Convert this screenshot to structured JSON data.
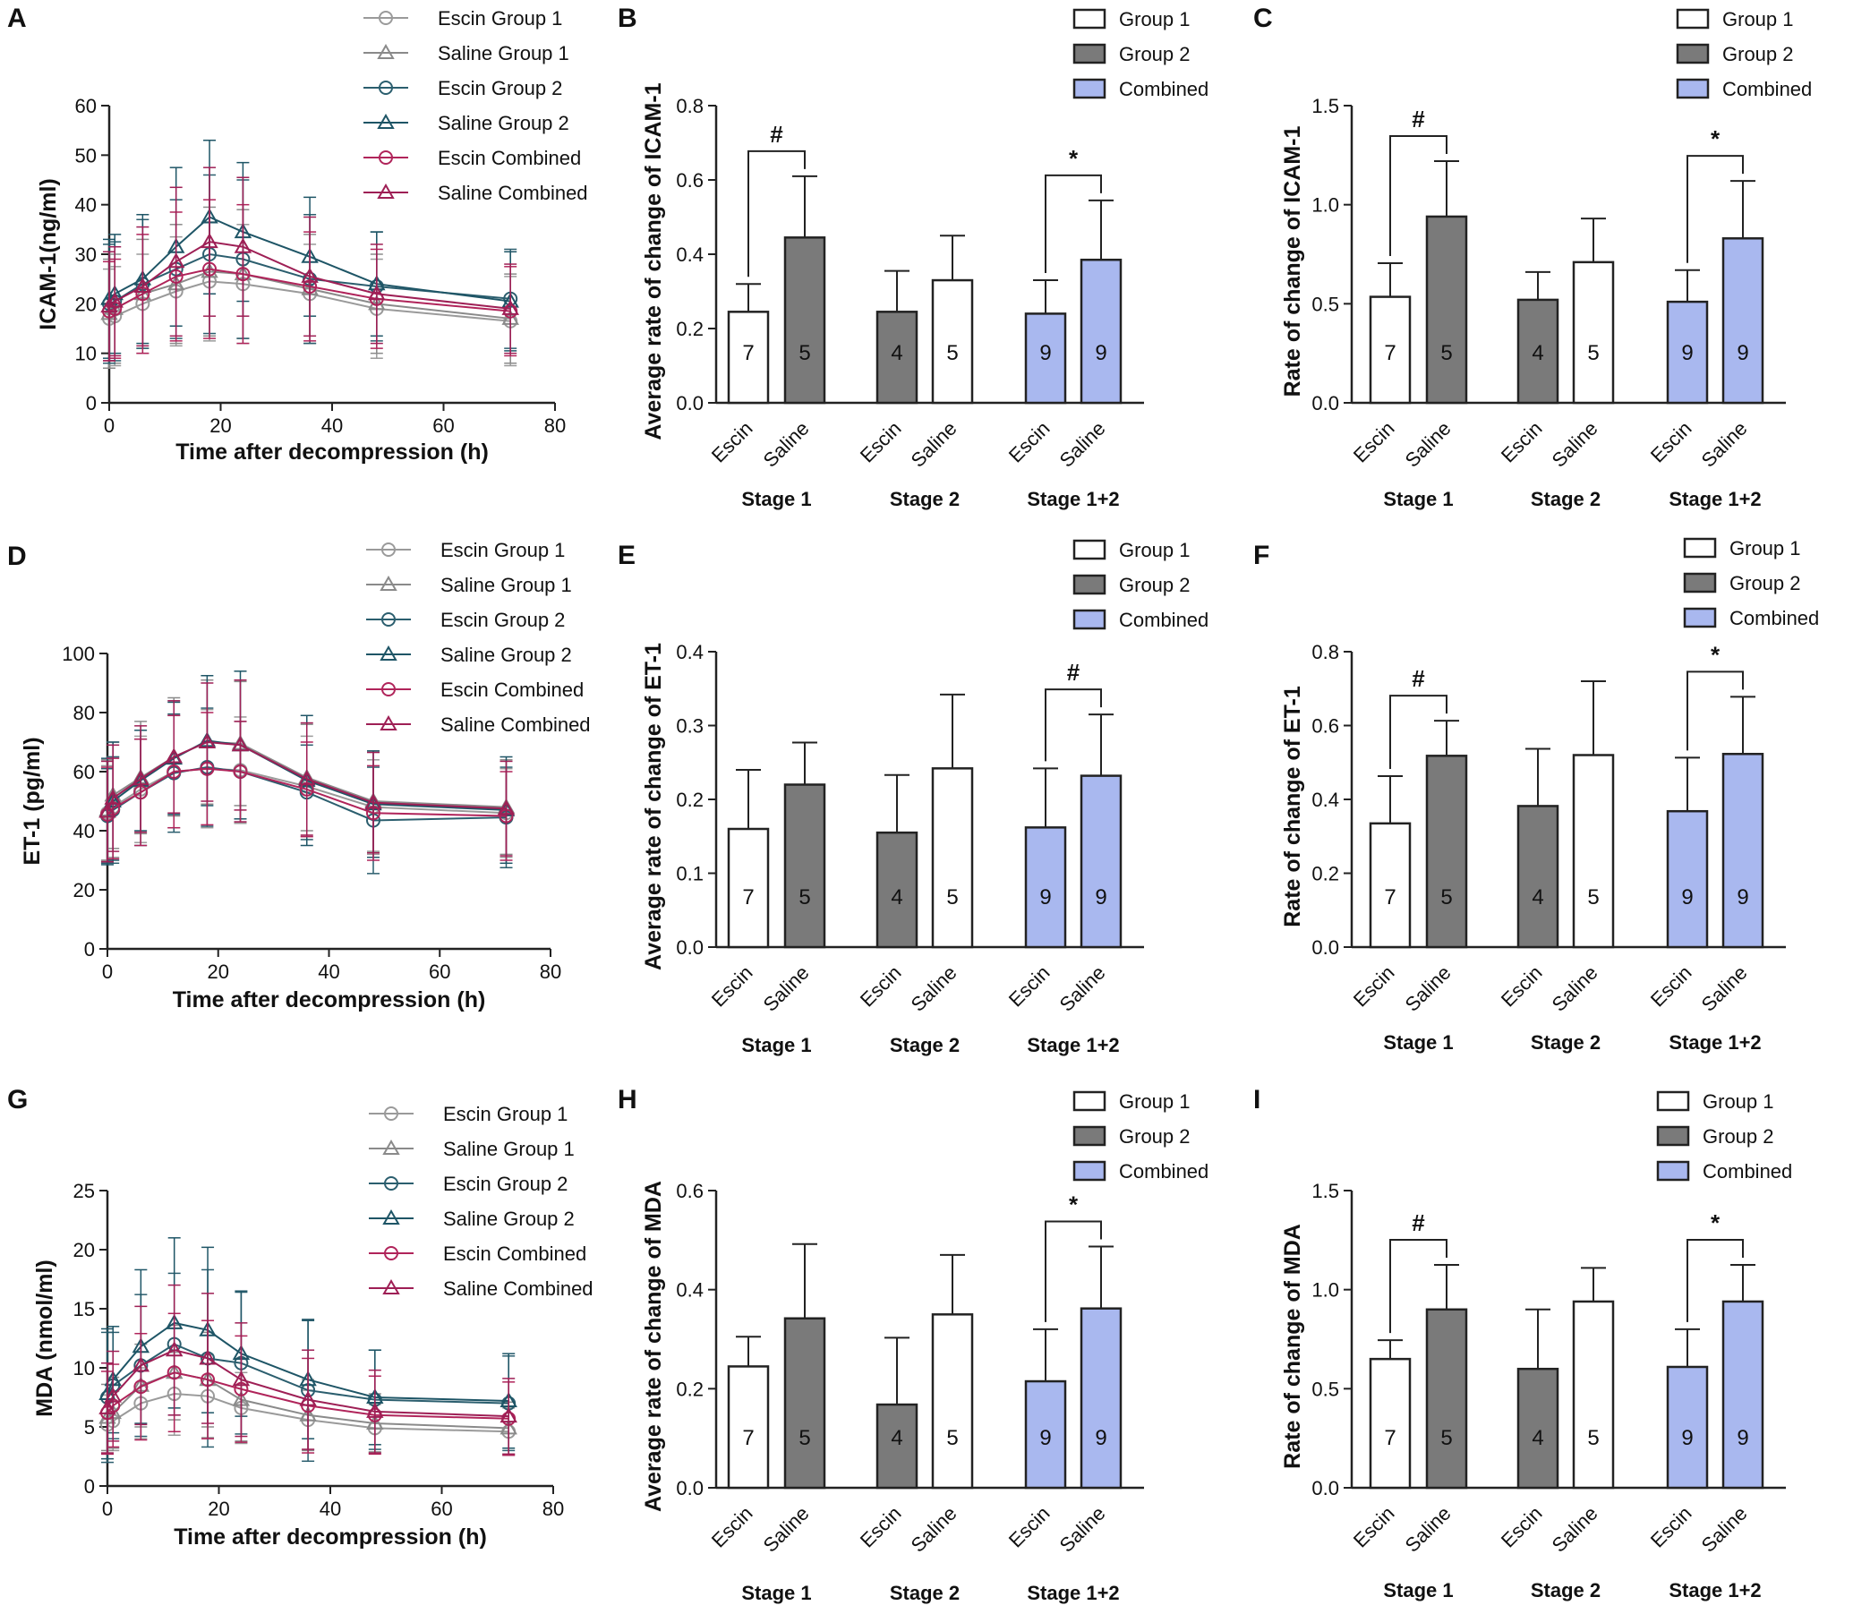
{
  "colors": {
    "group1": "#ffffff",
    "group2": "#7a7a7a",
    "combined": "#a9b8ef",
    "escin_g1": "#9a9a9a",
    "saline_g1": "#8a8a8a",
    "escin_g2": "#2b5e6e",
    "saline_g2": "#1e5566",
    "escin_comb": "#b0245a",
    "saline_comb": "#9e1f55",
    "axis": "#222222"
  },
  "chart_data": [
    {
      "panel": "A",
      "type": "line",
      "xlabel": "Time after decompression (h)",
      "ylabel": "ICAM-1(ng/ml)",
      "xlim": [
        0,
        80
      ],
      "ylim": [
        0,
        60
      ],
      "xticks": [
        "0",
        "20",
        "40",
        "60",
        "80"
      ],
      "yticks": [
        "0",
        "10",
        "20",
        "30",
        "40",
        "50",
        "60"
      ],
      "x": [
        0,
        1,
        6,
        12,
        18,
        24,
        36,
        48,
        72
      ],
      "series": [
        {
          "name": "Escin Group 1",
          "marker": "circle",
          "color_key": "escin_g1",
          "values": [
            17,
            17.5,
            20,
            22.5,
            24.5,
            24,
            22,
            19,
            16.5
          ],
          "err": [
            10,
            10,
            10,
            11,
            12,
            12,
            10,
            10,
            9
          ]
        },
        {
          "name": "Saline Group 1",
          "marker": "triangle",
          "color_key": "saline_g1",
          "values": [
            18,
            19,
            22,
            24,
            26.5,
            26,
            23,
            20,
            17
          ],
          "err": [
            11,
            11,
            11,
            12,
            13,
            13,
            11,
            10,
            9
          ]
        },
        {
          "name": "Escin Group 2",
          "marker": "circle",
          "color_key": "escin_g2",
          "values": [
            20,
            20.5,
            24,
            27,
            30,
            29,
            25,
            23.5,
            21
          ],
          "err": [
            12,
            12,
            13,
            14,
            16,
            16,
            13,
            11,
            10
          ]
        },
        {
          "name": "Saline Group 2",
          "marker": "triangle",
          "color_key": "saline_g2",
          "values": [
            21,
            22,
            25,
            31.5,
            37.5,
            34.5,
            29.5,
            24,
            20.5
          ],
          "err": [
            12,
            12,
            13,
            16,
            15.5,
            14,
            12,
            10.5,
            10
          ]
        },
        {
          "name": "Escin Combined",
          "marker": "circle",
          "color_key": "escin_comb",
          "values": [
            18.5,
            19,
            22,
            25.5,
            27,
            26,
            23.5,
            21,
            18.5
          ],
          "err": [
            10,
            10,
            12,
            13,
            14,
            14,
            11,
            10,
            9
          ]
        },
        {
          "name": "Saline Combined",
          "marker": "triangle",
          "color_key": "saline_comb",
          "values": [
            19.5,
            20.5,
            23.5,
            28.5,
            32.5,
            31.5,
            25.5,
            22,
            19
          ],
          "err": [
            11,
            11,
            12,
            15,
            15,
            14,
            12,
            10,
            9
          ]
        }
      ]
    },
    {
      "panel": "B",
      "type": "bar",
      "ylabel": "Average rate of change of ICAM-1",
      "ylim": [
        0,
        0.8
      ],
      "yticks": [
        "0.0",
        "0.2",
        "0.4",
        "0.6",
        "0.8"
      ],
      "legend": [
        "Group 1",
        "Group 2",
        "Combined"
      ],
      "stages": [
        "Stage 1",
        "Stage 2",
        "Stage 1+2"
      ],
      "bar_labels": [
        "Escin",
        "Saline",
        "Escin",
        "Saline",
        "Escin",
        "Saline"
      ],
      "bar_colors": [
        "group1",
        "group2",
        "group2",
        "group1",
        "combined",
        "combined"
      ],
      "values": [
        0.245,
        0.445,
        0.245,
        0.33,
        0.24,
        0.385
      ],
      "err": [
        0.075,
        0.165,
        0.11,
        0.12,
        0.09,
        0.16
      ],
      "n": [
        "7",
        "5",
        "4",
        "5",
        "9",
        "9"
      ],
      "significance": [
        {
          "stage": 0,
          "symbol": "#"
        },
        {
          "stage": 2,
          "symbol": "*"
        }
      ]
    },
    {
      "panel": "C",
      "type": "bar",
      "ylabel": "Rate of change of ICAM-1",
      "ylim": [
        0,
        1.5
      ],
      "yticks": [
        "0.0",
        "0.5",
        "1.0",
        "1.5"
      ],
      "legend": [
        "Group 1",
        "Group 2",
        "Combined"
      ],
      "stages": [
        "Stage 1",
        "Stage 2",
        "Stage 1+2"
      ],
      "bar_labels": [
        "Escin",
        "Saline",
        "Escin",
        "Saline",
        "Escin",
        "Saline"
      ],
      "bar_colors": [
        "group1",
        "group2",
        "group2",
        "group1",
        "combined",
        "combined"
      ],
      "values": [
        0.535,
        0.94,
        0.52,
        0.71,
        0.51,
        0.83
      ],
      "err": [
        0.17,
        0.28,
        0.14,
        0.22,
        0.16,
        0.29
      ],
      "n": [
        "7",
        "5",
        "4",
        "5",
        "9",
        "9"
      ],
      "significance": [
        {
          "stage": 0,
          "symbol": "#"
        },
        {
          "stage": 2,
          "symbol": "*"
        }
      ]
    },
    {
      "panel": "D",
      "type": "line",
      "xlabel": "Time after decompression (h)",
      "ylabel": "ET-1 (pg/ml)",
      "xlim": [
        0,
        80
      ],
      "ylim": [
        0,
        100
      ],
      "xticks": [
        "0",
        "20",
        "40",
        "60",
        "80"
      ],
      "yticks": [
        "0",
        "20",
        "40",
        "60",
        "80",
        "100"
      ],
      "x": [
        0,
        1,
        6,
        12,
        18,
        24,
        36,
        48,
        72
      ],
      "series": [
        {
          "name": "Escin Group 1",
          "marker": "circle",
          "color_key": "escin_g1",
          "values": [
            46,
            48,
            54,
            60,
            61,
            60.5,
            55,
            48,
            46
          ],
          "err": [
            16,
            17,
            18,
            19,
            20,
            18,
            17,
            16,
            15
          ]
        },
        {
          "name": "Saline Group 1",
          "marker": "triangle",
          "color_key": "saline_g1",
          "values": [
            47,
            52,
            58,
            65,
            70,
            69.5,
            58,
            50,
            48
          ],
          "err": [
            17,
            18,
            19,
            20,
            21,
            21,
            18,
            17,
            16
          ]
        },
        {
          "name": "Escin Group 2",
          "marker": "circle",
          "color_key": "escin_g2",
          "values": [
            45,
            47,
            53,
            59.5,
            61.5,
            60,
            53,
            43.5,
            44.5
          ],
          "err": [
            16,
            18,
            18,
            20,
            20,
            17,
            16,
            18,
            17
          ]
        },
        {
          "name": "Saline Group 2",
          "marker": "triangle",
          "color_key": "saline_g2",
          "values": [
            46.5,
            50,
            57,
            64.5,
            70.5,
            69,
            57,
            49,
            47
          ],
          "err": [
            18,
            20,
            17,
            19,
            22,
            25,
            22,
            18,
            18
          ]
        },
        {
          "name": "Escin Combined",
          "marker": "circle",
          "color_key": "escin_comb",
          "values": [
            45.5,
            47.5,
            53,
            60,
            61,
            60,
            54,
            46,
            45
          ],
          "err": [
            16,
            17,
            18,
            19,
            19,
            17,
            16,
            16,
            15
          ]
        },
        {
          "name": "Saline Combined",
          "marker": "triangle",
          "color_key": "saline_comb",
          "values": [
            46.5,
            51,
            57.5,
            65,
            70,
            69,
            57.5,
            49.5,
            47.5
          ],
          "err": [
            17,
            18,
            18,
            19,
            20,
            22,
            19,
            17,
            16
          ]
        }
      ]
    },
    {
      "panel": "E",
      "type": "bar",
      "ylabel": "Average rate of change of ET-1",
      "ylim": [
        0,
        0.4
      ],
      "yticks": [
        "0.0",
        "0.1",
        "0.2",
        "0.3",
        "0.4"
      ],
      "legend": [
        "Group 1",
        "Group 2",
        "Combined"
      ],
      "stages": [
        "Stage 1",
        "Stage 2",
        "Stage 1+2"
      ],
      "bar_labels": [
        "Escin",
        "Saline",
        "Escin",
        "Saline",
        "Escin",
        "Saline"
      ],
      "bar_colors": [
        "group1",
        "group2",
        "group2",
        "group1",
        "combined",
        "combined"
      ],
      "values": [
        0.16,
        0.22,
        0.155,
        0.242,
        0.162,
        0.232
      ],
      "err": [
        0.08,
        0.057,
        0.078,
        0.1,
        0.08,
        0.083
      ],
      "n": [
        "7",
        "5",
        "4",
        "5",
        "9",
        "9"
      ],
      "significance": [
        {
          "stage": 2,
          "symbol": "#"
        }
      ]
    },
    {
      "panel": "F",
      "type": "bar",
      "ylabel": "Rate of change of ET-1",
      "ylim": [
        0,
        0.8
      ],
      "yticks": [
        "0.0",
        "0.2",
        "0.4",
        "0.6",
        "0.8"
      ],
      "legend": [
        "Group 1",
        "Group 2",
        "Combined"
      ],
      "stages": [
        "Stage 1",
        "Stage 2",
        "Stage 1+2"
      ],
      "bar_labels": [
        "Escin",
        "Saline",
        "Escin",
        "Saline",
        "Escin",
        "Saline"
      ],
      "bar_colors": [
        "group1",
        "group2",
        "group2",
        "group1",
        "combined",
        "combined"
      ],
      "values": [
        0.335,
        0.518,
        0.382,
        0.52,
        0.368,
        0.523
      ],
      "err": [
        0.128,
        0.095,
        0.155,
        0.2,
        0.145,
        0.155
      ],
      "n": [
        "7",
        "5",
        "4",
        "5",
        "9",
        "9"
      ],
      "significance": [
        {
          "stage": 0,
          "symbol": "#"
        },
        {
          "stage": 2,
          "symbol": "*"
        }
      ]
    },
    {
      "panel": "G",
      "type": "line",
      "xlabel": "Time after decompression (h)",
      "ylabel": "MDA (nmol/ml)",
      "xlim": [
        0,
        80
      ],
      "ylim": [
        0,
        25
      ],
      "xticks": [
        "0",
        "20",
        "40",
        "60",
        "80"
      ],
      "yticks": [
        "0",
        "5",
        "10",
        "15",
        "20",
        "25"
      ],
      "x": [
        0,
        1,
        6,
        12,
        18,
        24,
        36,
        48,
        72
      ],
      "series": [
        {
          "name": "Escin Group 1",
          "marker": "circle",
          "color_key": "escin_g1",
          "values": [
            5.2,
            5.5,
            7,
            7.8,
            7.6,
            6.6,
            5.6,
            4.9,
            4.6
          ],
          "err": [
            2.5,
            2.5,
            3,
            3.5,
            3.5,
            3,
            2.5,
            2,
            2
          ]
        },
        {
          "name": "Saline Group 1",
          "marker": "triangle",
          "color_key": "saline_g1",
          "values": [
            5.8,
            6.2,
            8.5,
            9.6,
            9,
            7.3,
            6,
            5.3,
            4.9
          ],
          "err": [
            2.8,
            3,
            3.5,
            4,
            4,
            3.5,
            3,
            2.5,
            2.2
          ]
        },
        {
          "name": "Escin Group 2",
          "marker": "circle",
          "color_key": "escin_g2",
          "values": [
            7.5,
            8.5,
            10.2,
            12,
            10.8,
            10.4,
            8.1,
            7.3,
            7
          ],
          "err": [
            5.5,
            4.5,
            6,
            6,
            7.5,
            6,
            6,
            4.2,
            4
          ]
        },
        {
          "name": "Saline Group 2",
          "marker": "triangle",
          "color_key": "saline_g2",
          "values": [
            7.8,
            9,
            11.8,
            13.8,
            13.2,
            11.2,
            9,
            7.5,
            7.2
          ],
          "err": [
            5.5,
            4.5,
            6.5,
            7.2,
            7,
            5.3,
            5,
            4,
            4
          ]
        },
        {
          "name": "Escin Combined",
          "marker": "circle",
          "color_key": "escin_comb",
          "values": [
            6.2,
            6.8,
            8.4,
            9.6,
            9,
            8.2,
            6.8,
            6,
            5.7
          ],
          "err": [
            3.5,
            3.5,
            4.5,
            5,
            5,
            4.5,
            4,
            3.3,
            3.1
          ]
        },
        {
          "name": "Saline Combined",
          "marker": "triangle",
          "color_key": "saline_comb",
          "values": [
            6.6,
            7.6,
            10.2,
            11.5,
            10.8,
            9,
            7.3,
            6.3,
            5.9
          ],
          "err": [
            3.8,
            3.8,
            5,
            5.5,
            5.5,
            4.8,
            4.2,
            3.5,
            3.2
          ]
        }
      ]
    },
    {
      "panel": "H",
      "type": "bar",
      "ylabel": "Average rate of change of MDA",
      "ylim": [
        0,
        0.6
      ],
      "yticks": [
        "0.0",
        "0.2",
        "0.4",
        "0.6"
      ],
      "legend": [
        "Group 1",
        "Group 2",
        "Combined"
      ],
      "stages": [
        "Stage 1",
        "Stage 2",
        "Stage 1+2"
      ],
      "bar_labels": [
        "Escin",
        "Saline",
        "Escin",
        "Saline",
        "Escin",
        "Saline"
      ],
      "bar_colors": [
        "group1",
        "group2",
        "group2",
        "group1",
        "combined",
        "combined"
      ],
      "values": [
        0.245,
        0.342,
        0.168,
        0.35,
        0.215,
        0.362
      ],
      "err": [
        0.06,
        0.15,
        0.135,
        0.12,
        0.105,
        0.125
      ],
      "n": [
        "7",
        "5",
        "4",
        "5",
        "9",
        "9"
      ],
      "significance": [
        {
          "stage": 2,
          "symbol": "*"
        }
      ]
    },
    {
      "panel": "I",
      "type": "bar",
      "ylabel": "Rate of change of MDA",
      "ylim": [
        0,
        1.5
      ],
      "yticks": [
        "0.0",
        "0.5",
        "1.0",
        "1.5"
      ],
      "legend": [
        "Group 1",
        "Group 2",
        "Combined"
      ],
      "stages": [
        "Stage 1",
        "Stage 2",
        "Stage 1+2"
      ],
      "bar_labels": [
        "Escin",
        "Saline",
        "Escin",
        "Saline",
        "Escin",
        "Saline"
      ],
      "bar_colors": [
        "group1",
        "group2",
        "group2",
        "group1",
        "combined",
        "combined"
      ],
      "values": [
        0.65,
        0.9,
        0.6,
        0.94,
        0.61,
        0.94
      ],
      "err": [
        0.095,
        0.225,
        0.3,
        0.17,
        0.19,
        0.185
      ],
      "n": [
        "7",
        "5",
        "4",
        "5",
        "9",
        "9"
      ],
      "significance": [
        {
          "stage": 0,
          "symbol": "#"
        },
        {
          "stage": 2,
          "symbol": "*"
        }
      ]
    }
  ]
}
